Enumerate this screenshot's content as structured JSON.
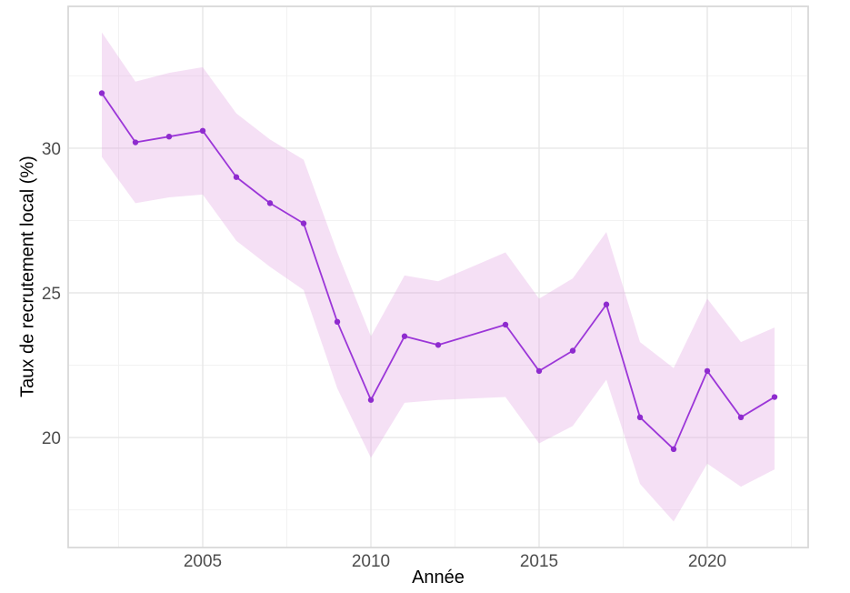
{
  "chart_data": {
    "type": "line",
    "title": "",
    "xlabel": "Année",
    "ylabel": "Taux de recrutement local (%)",
    "x": [
      2002,
      2003,
      2004,
      2005,
      2006,
      2007,
      2008,
      2009,
      2010,
      2011,
      2012,
      2014,
      2015,
      2016,
      2017,
      2018,
      2019,
      2020,
      2021,
      2022
    ],
    "series": [
      {
        "name": "Taux de recrutement local",
        "values": [
          31.9,
          30.2,
          30.4,
          30.6,
          29.0,
          28.1,
          27.4,
          24.0,
          21.3,
          23.5,
          23.2,
          23.9,
          22.3,
          23.0,
          24.6,
          20.7,
          19.6,
          22.3,
          20.7,
          21.4
        ]
      }
    ],
    "band": {
      "name": "confidence-interval",
      "lower": [
        29.7,
        28.1,
        28.3,
        28.4,
        26.8,
        25.9,
        25.1,
        21.7,
        19.3,
        21.2,
        21.3,
        21.4,
        19.8,
        20.4,
        22.0,
        18.4,
        17.1,
        19.1,
        18.3,
        18.9
      ],
      "upper": [
        34.0,
        32.3,
        32.6,
        32.8,
        31.2,
        30.3,
        29.6,
        26.4,
        23.5,
        25.6,
        25.4,
        26.4,
        24.8,
        25.5,
        27.1,
        23.3,
        22.4,
        24.8,
        23.3,
        23.8
      ]
    },
    "xlim": [
      2001,
      2023
    ],
    "ylim": [
      16.2,
      34.9
    ],
    "x_ticks": [
      2005,
      2010,
      2015,
      2020
    ],
    "y_ticks": [
      20,
      25,
      30
    ],
    "x_minor_ticks": [
      2002.5,
      2007.5,
      2012.5,
      2017.5,
      2022.5
    ],
    "y_minor_ticks": [
      17.5,
      22.5,
      27.5,
      32.5
    ],
    "grid": true,
    "legend": false,
    "missing_years": [
      2013
    ],
    "colors": {
      "line": "#9B36D8",
      "point": "#8E2BCE",
      "band_fill": "rgba(224,160,224,0.32)",
      "grid_major": "#E7E7E7",
      "grid_minor": "#F2F2F2",
      "panel_border": "#D9D9D9",
      "tick_label": "#4D4D4D",
      "axis_title": "#000000",
      "background": "#FFFFFF"
    }
  }
}
